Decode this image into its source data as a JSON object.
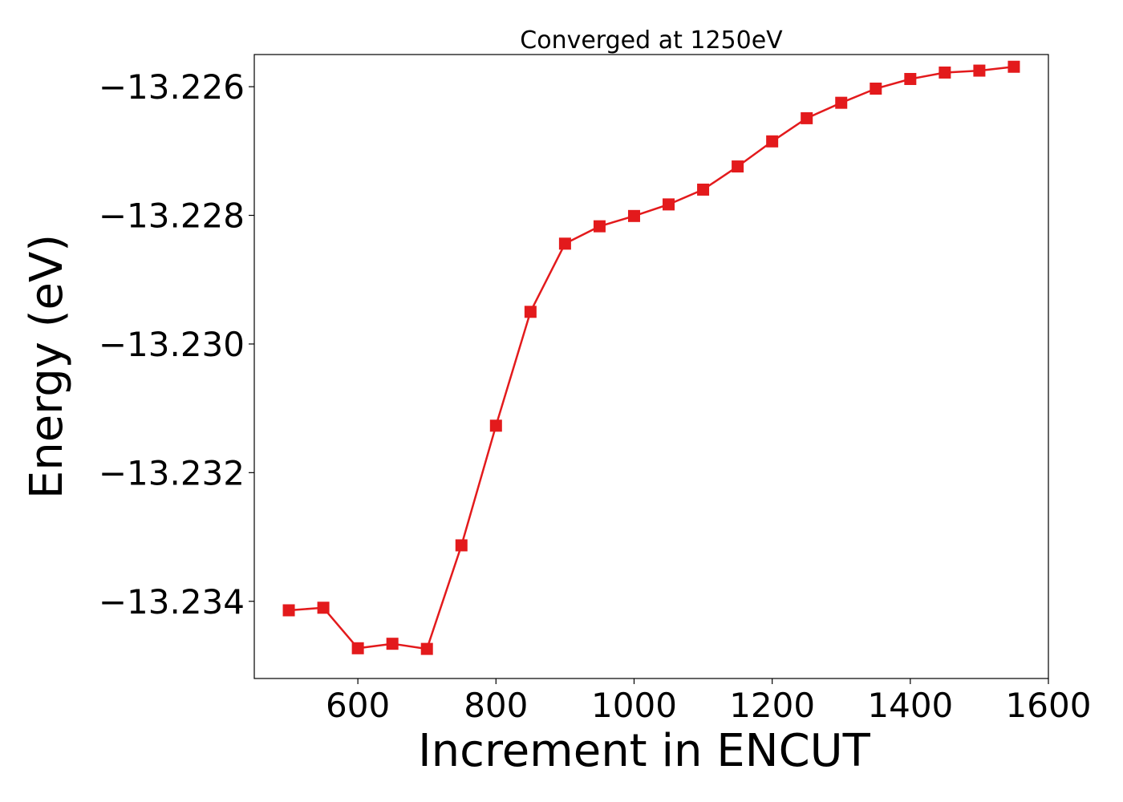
{
  "chart_data": {
    "type": "line",
    "title": "Converged at 1250eV",
    "xlabel": "Increment in ENCUT",
    "ylabel": "Energy (eV)",
    "xlim": [
      450,
      1600
    ],
    "ylim": [
      -13.2352,
      -13.2255
    ],
    "x_ticks": [
      600,
      800,
      1000,
      1200,
      1400,
      1600
    ],
    "x_tick_labels": [
      "600",
      "800",
      "1000",
      "1200",
      "1400",
      "1600"
    ],
    "y_ticks": [
      -13.226,
      -13.228,
      -13.23,
      -13.232,
      -13.234
    ],
    "y_tick_labels": [
      "−13.226",
      "−13.228",
      "−13.230",
      "−13.232",
      "−13.234"
    ],
    "grid": false,
    "series": [
      {
        "color": "#e31a1c",
        "marker": "square",
        "x": [
          500,
          550,
          600,
          650,
          700,
          750,
          800,
          850,
          900,
          950,
          1000,
          1050,
          1100,
          1150,
          1200,
          1250,
          1300,
          1350,
          1400,
          1450,
          1500,
          1550
        ],
        "y": [
          -13.23414,
          -13.2341,
          -13.23473,
          -13.23466,
          -13.23474,
          -13.23313,
          -13.23127,
          -13.2295,
          -13.22844,
          -13.22817,
          -13.22801,
          -13.22783,
          -13.2276,
          -13.22724,
          -13.22685,
          -13.22649,
          -13.22625,
          -13.22603,
          -13.22588,
          -13.22578,
          -13.22575,
          -13.22569
        ]
      }
    ]
  }
}
